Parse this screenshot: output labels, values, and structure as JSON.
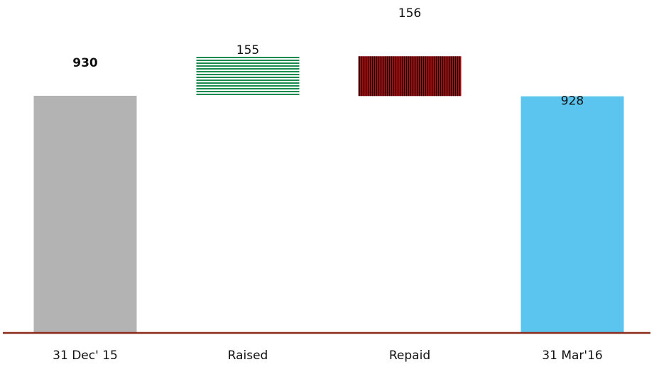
{
  "chart_data": {
    "type": "bar",
    "subtype": "waterfall",
    "categories": [
      "31 Dec' 15",
      "Raised",
      "Repaid",
      "31 Mar'16"
    ],
    "values": [
      930,
      155,
      156,
      928
    ],
    "bar_kind": [
      "total",
      "increase",
      "decrease",
      "total"
    ],
    "data_labels": [
      "930",
      "155",
      "156",
      "928"
    ],
    "label_bold": [
      true,
      false,
      false,
      false
    ],
    "colors": {
      "start_total": "#b3b3b3",
      "increase": "#1a8a50",
      "decrease": "#a01010",
      "end_total": "#5bc5f0",
      "axis": "#8b2a1a"
    },
    "patterns": {
      "increase": "horizontal-stripes",
      "decrease": "vertical-stripes"
    },
    "ylim": [
      0,
      1300
    ],
    "grid": false,
    "legend": "none",
    "title": "",
    "xlabel": "",
    "ylabel": ""
  }
}
